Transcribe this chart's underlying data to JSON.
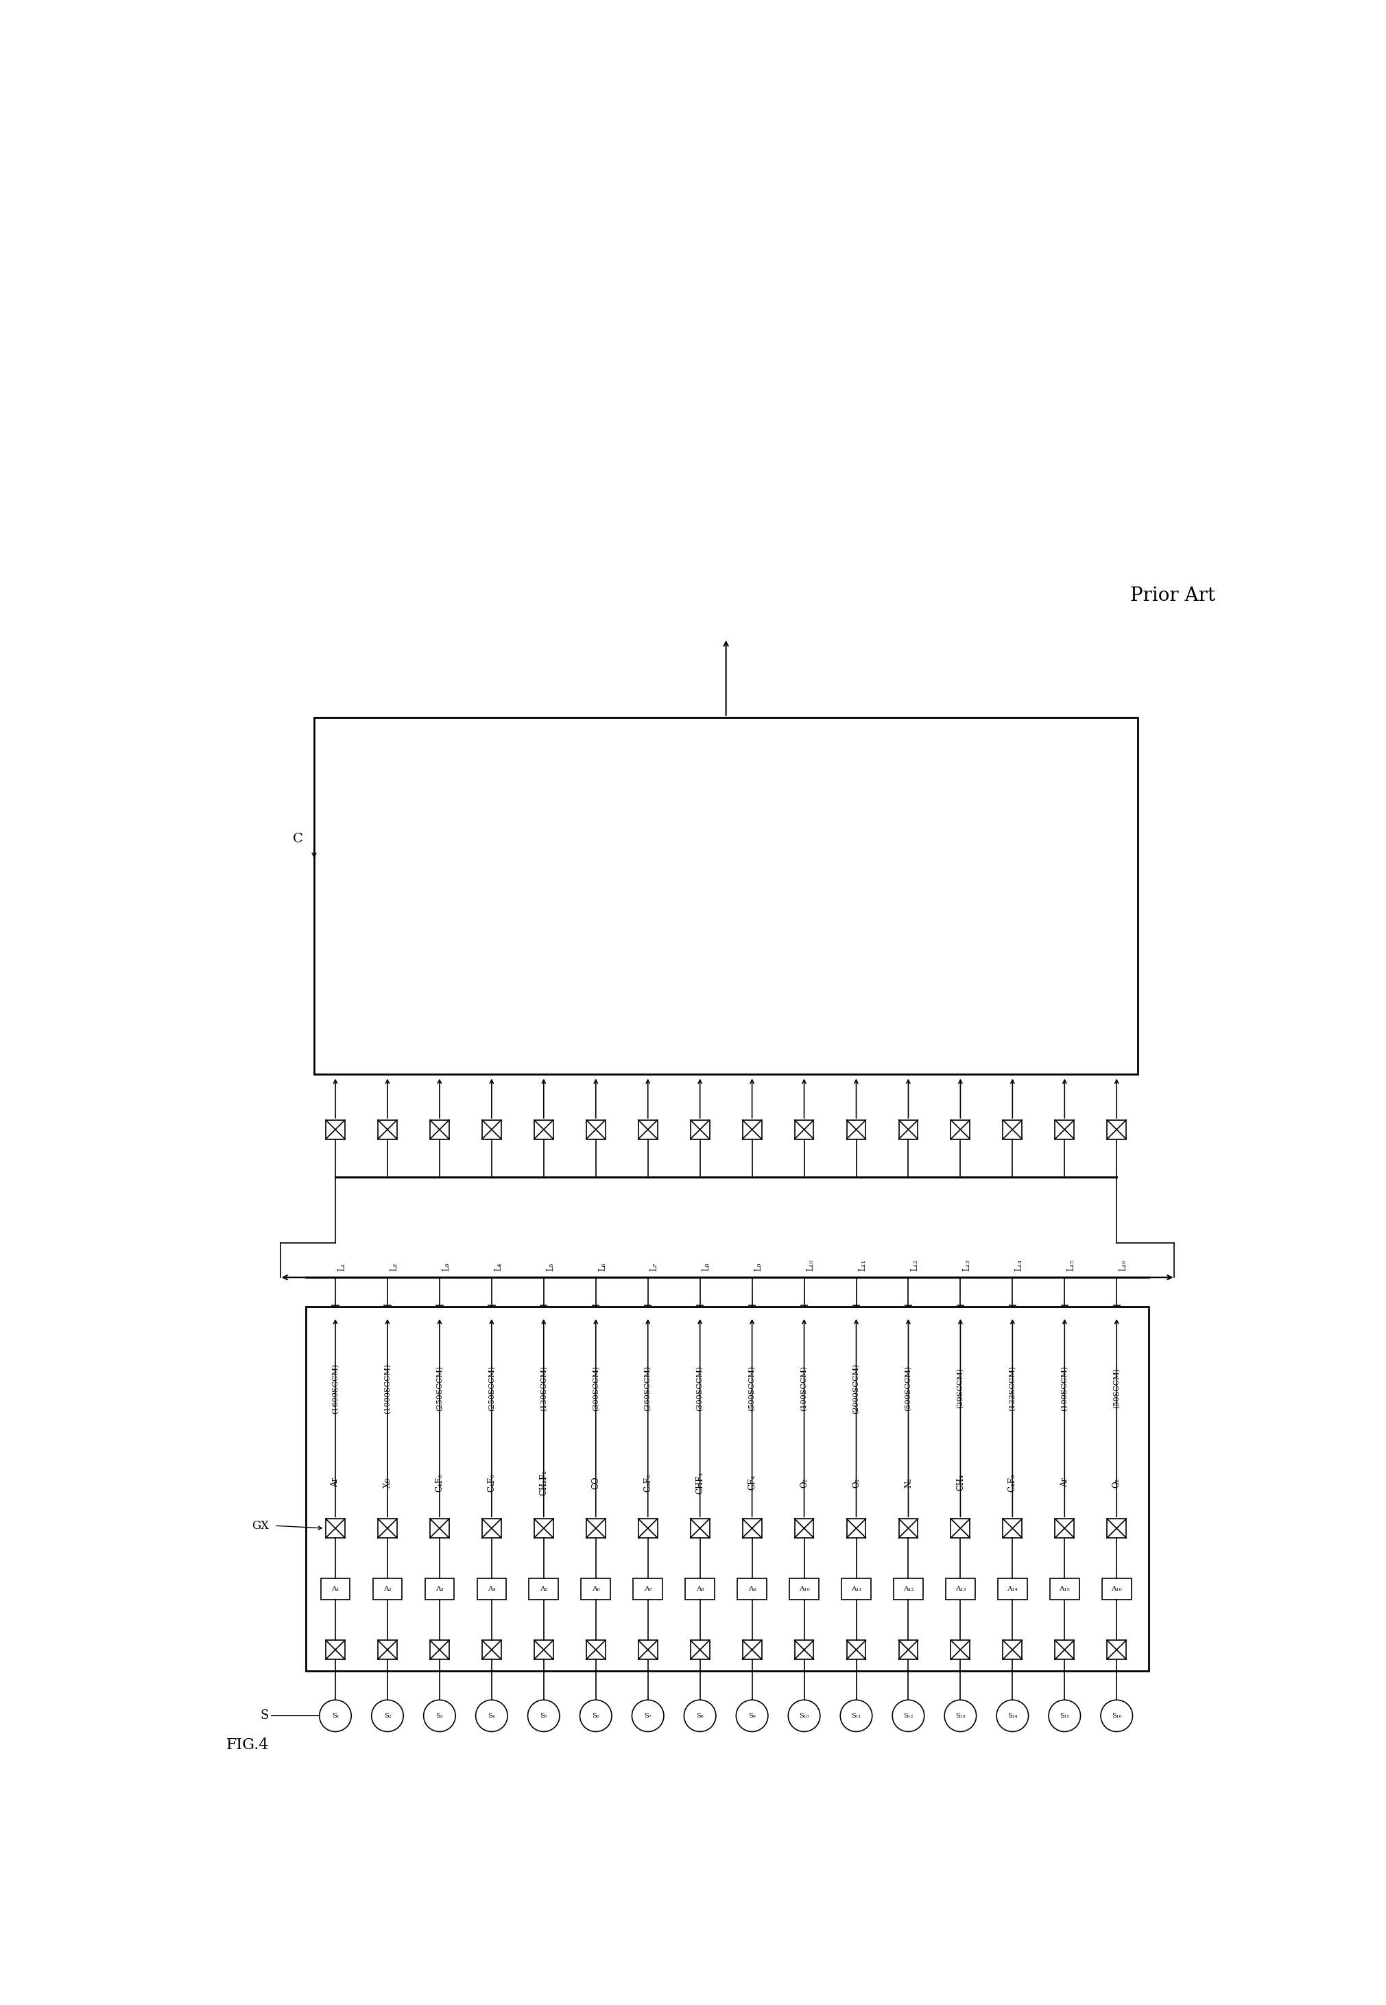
{
  "title": "FIG.4",
  "prior_art_label": "Prior Art",
  "gas_lines": [
    {
      "id": 1,
      "gas": "Ar",
      "flow": "(1600SCCM)",
      "label": "A1"
    },
    {
      "id": 2,
      "gas": "Xe",
      "flow": "(1000SCCM)",
      "label": "A2"
    },
    {
      "id": 3,
      "gas": "C4F6",
      "flow": "(250SCCM)",
      "label": "A3"
    },
    {
      "id": 4,
      "gas": "C4F8",
      "flow": "(250SCCM)",
      "label": "A4"
    },
    {
      "id": 5,
      "gas": "CH2F2",
      "flow": "(130SCCM)",
      "label": "A5"
    },
    {
      "id": 6,
      "gas": "CO",
      "flow": "(300SCCM)",
      "label": "A6"
    },
    {
      "id": 7,
      "gas": "C3F8",
      "flow": "(260SCCM)",
      "label": "A7"
    },
    {
      "id": 8,
      "gas": "CHF3",
      "flow": "(300SCCM)",
      "label": "A8"
    },
    {
      "id": 9,
      "gas": "CF4",
      "flow": "(500SCCM)",
      "label": "A9"
    },
    {
      "id": 10,
      "gas": "O2",
      "flow": "(100SCCM)",
      "label": "A10"
    },
    {
      "id": 11,
      "gas": "O2",
      "flow": "(2000SCCM)",
      "label": "A11"
    },
    {
      "id": 12,
      "gas": "N2",
      "flow": "(500SCCM)",
      "label": "A12"
    },
    {
      "id": 13,
      "gas": "CH4",
      "flow": "(20SCCM)",
      "label": "A13"
    },
    {
      "id": 14,
      "gas": "C4F8",
      "flow": "(122SCCM)",
      "label": "A14"
    },
    {
      "id": 15,
      "gas": "Ar",
      "flow": "(100SCCM)",
      "label": "A15"
    },
    {
      "id": 16,
      "gas": "O2",
      "flow": "(50SCCM)",
      "label": "A16"
    }
  ],
  "gas_unicode": [
    "Ar",
    "Xe",
    "C₄F₆",
    "C₄F₈",
    "CH₂F₂",
    "CO",
    "C₃F₈",
    "CHF₃",
    "CF₄",
    "O₂",
    "O₂",
    "N₂",
    "CH₄",
    "C₄F₈",
    "Ar",
    "O₂"
  ],
  "label_unicode": [
    "A₁",
    "A₂",
    "A₃",
    "A₄",
    "A₅",
    "A₆",
    "A₇",
    "A₈",
    "A₉",
    "A₁₀",
    "A₁₁",
    "A₁₂",
    "A₁₃",
    "A₁₄",
    "A₁₅",
    "A₁₆"
  ],
  "line_labels": [
    "L₁",
    "L₂",
    "L₃",
    "L₄",
    "L₅",
    "L₆",
    "L₇",
    "L₈",
    "L₉",
    "L₁₀",
    "L₁₁",
    "L₁₂",
    "L₁₃",
    "L₁₄",
    "L₁₅",
    "L₁₆"
  ],
  "source_labels": [
    "S₁",
    "S₂",
    "S₃",
    "S₄",
    "S₅",
    "S₆",
    "S₇",
    "S₈",
    "S₉",
    "S₁₀",
    "S₁₁",
    "S₁₂",
    "S₁₃",
    "S₁₄",
    "S₁₅",
    "S₁₆"
  ],
  "S_label": "S",
  "GX_label": "GX",
  "C_label": "C",
  "bg_color": "#ffffff",
  "line_color": "#000000",
  "n_lines": 16
}
